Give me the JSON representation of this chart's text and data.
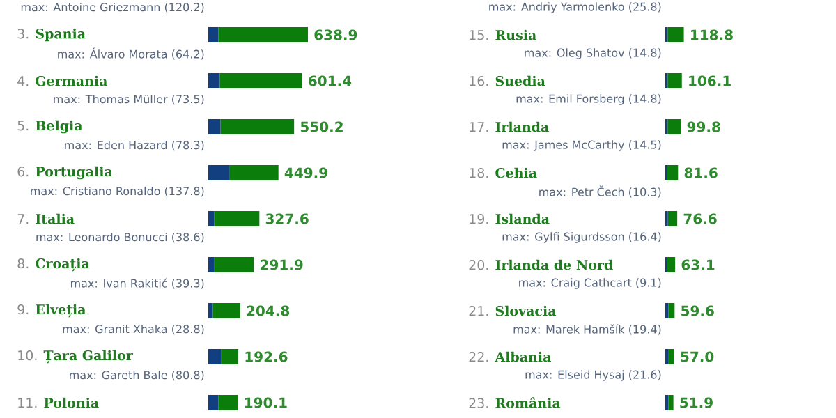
{
  "chart_data": [
    {
      "type": "bar",
      "orientation": "horizontal",
      "stacked": true,
      "tick_labels": "y",
      "categories": [
        "3. **Spania**",
        "4. **Germania**",
        "5. **Belgia**",
        "6. **Portugalia**",
        "7. **Italia**",
        "8. **Croația**",
        "9. **Elveția**",
        "10. **Țara Galilor**",
        "11. **Polonia**"
      ],
      "series": [
        {
          "color": "#123f7f",
          "values": [
            64.2,
            73.5,
            78.3,
            137.8,
            38.6,
            39.3,
            28.8,
            80.8,
            65
          ],
          "value_labels": [
            "max: Álvaro Morata (64.2)",
            "max: Thomas Müller (73.5)",
            "max: Eden Hazard (78.3)",
            "max: Cristiano Ronaldo (137.8)",
            "max: Leonardo Bonucci (38.6)",
            "max: Ivan Rakitić (39.3)",
            "max: Granit Xhaka (28.8)",
            "max: Gareth Bale (80.8)",
            null
          ]
        },
        {
          "color": "#0b7d0b",
          "values": [
            574.7,
            527.9,
            471.9,
            312.1,
            289.0,
            252.6,
            176.0,
            111.8,
            125.1
          ]
        }
      ],
      "totals": [
        "638.9",
        "601.4",
        "550.2",
        "449.9",
        "327.6",
        "291.9",
        "204.8",
        "192.6",
        "190.1"
      ],
      "annotations": [
        "max: Antoine Griezmann (120.2)"
      ]
    },
    {
      "type": "bar",
      "orientation": "horizontal",
      "stacked": true,
      "tick_labels": "y",
      "categories": [
        "15. **Rusia**",
        "16. **Suedia**",
        "17. **Irlanda**",
        "18. **Cehia**",
        "19. **Islanda**",
        "20. **Irlanda de Nord**",
        "21. **Slovacia**",
        "22. **Albania**",
        "23. **România**"
      ],
      "series": [
        {
          "color": "#123f7f",
          "values": [
            14.8,
            14.8,
            14.5,
            10.3,
            16.4,
            9.1,
            19.4,
            21.6,
            20
          ],
          "value_labels": [
            "max: Oleg Shatov (14.8)",
            "max: Emil Forsberg (14.8)",
            "max: James McCarthy (14.5)",
            "max: Petr Čech (10.3)",
            "max: Gylfi Sigurdsson (16.4)",
            "max: Craig Cathcart (9.1)",
            "max: Marek Hamšík (19.4)",
            "max: Elseid Hysaj (21.6)",
            null
          ]
        },
        {
          "color": "#0b7d0b",
          "values": [
            104.0,
            91.3,
            85.3,
            71.3,
            60.2,
            54.0,
            40.2,
            35.4,
            31.9
          ]
        }
      ],
      "totals": [
        "118.8",
        "106.1",
        "99.8",
        "81.6",
        "76.6",
        "63.1",
        "59.6",
        "57.0",
        "51.9"
      ],
      "annotations": [
        "max: Andriy Yarmolenko (25.8)"
      ]
    }
  ]
}
